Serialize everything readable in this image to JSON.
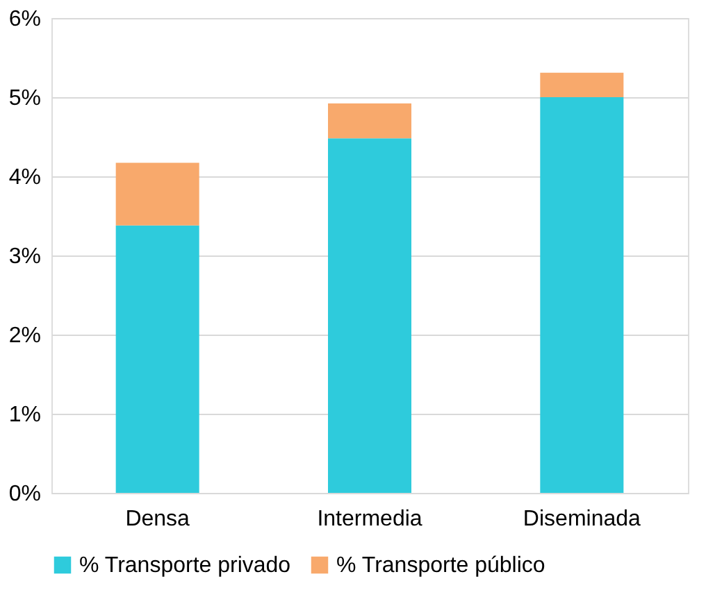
{
  "chart_data": {
    "type": "bar",
    "stacked": true,
    "categories": [
      "Densa",
      "Intermedia",
      "Diseminada"
    ],
    "series": [
      {
        "name": "% Transporte privado",
        "color": "#2ecbdc",
        "values": [
          3.38,
          4.48,
          5.0
        ]
      },
      {
        "name": "% Transporte público",
        "color": "#f8a96c",
        "values": [
          0.79,
          0.44,
          0.31
        ]
      }
    ],
    "ylim": [
      0,
      6
    ],
    "yticks": [
      {
        "value": 0,
        "label": "0%"
      },
      {
        "value": 1,
        "label": "1%"
      },
      {
        "value": 2,
        "label": "2%"
      },
      {
        "value": 3,
        "label": "3%"
      },
      {
        "value": 4,
        "label": "4%"
      },
      {
        "value": 5,
        "label": "5%"
      },
      {
        "value": 6,
        "label": "6%"
      }
    ],
    "grid": "y",
    "legend": "bottom"
  }
}
